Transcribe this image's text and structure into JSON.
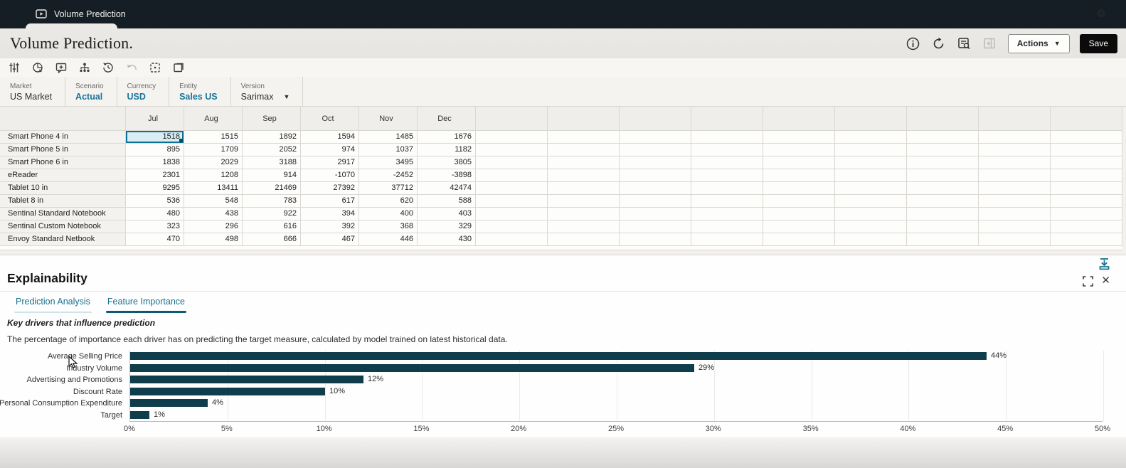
{
  "window": {
    "tab_title": "Volume Prediction"
  },
  "header": {
    "title": "Volume Prediction.",
    "actions_label": "Actions",
    "save_label": "Save",
    "icons": [
      "info-icon",
      "refresh-icon",
      "job-console-icon",
      "open-panel-icon"
    ]
  },
  "toolbar": {
    "icons": [
      "adjust-icon",
      "analyze-icon",
      "add-comment-icon",
      "hierarchy-icon",
      "history-icon",
      "undo-icon",
      "grid-options-icon",
      "new-window-icon"
    ],
    "undo_disabled": true
  },
  "pov": {
    "items": [
      {
        "label": "Market",
        "value": "US Market",
        "accent": false,
        "caret": false
      },
      {
        "label": "Scenario",
        "value": "Actual",
        "accent": true,
        "caret": false
      },
      {
        "label": "Currency",
        "value": "USD",
        "accent": true,
        "caret": false
      },
      {
        "label": "Entity",
        "value": "Sales US",
        "accent": true,
        "caret": false
      },
      {
        "label": "Version",
        "value": "Sarimax",
        "accent": false,
        "caret": true
      }
    ],
    "gear_icon": "gear-icon"
  },
  "grid": {
    "months": [
      "Jul",
      "Aug",
      "Sep",
      "Oct",
      "Nov",
      "Dec"
    ],
    "empty_columns": 9,
    "selected": {
      "row": 0,
      "col": 0
    },
    "rows": [
      {
        "label": "Smart Phone 4 in",
        "values": [
          "1518",
          "1515",
          "1892",
          "1594",
          "1485",
          "1676"
        ]
      },
      {
        "label": "Smart Phone 5 in",
        "values": [
          "895",
          "1709",
          "2052",
          "974",
          "1037",
          "1182"
        ]
      },
      {
        "label": "Smart Phone 6 in",
        "values": [
          "1838",
          "2029",
          "3188",
          "2917",
          "3495",
          "3805"
        ]
      },
      {
        "label": "eReader",
        "values": [
          "2301",
          "1208",
          "914",
          "-1070",
          "-2452",
          "-3898"
        ]
      },
      {
        "label": "Tablet 10 in",
        "values": [
          "9295",
          "13411",
          "21469",
          "27392",
          "37712",
          "42474"
        ]
      },
      {
        "label": "Tablet 8 in",
        "values": [
          "536",
          "548",
          "783",
          "617",
          "620",
          "588"
        ]
      },
      {
        "label": "Sentinal Standard Notebook",
        "values": [
          "480",
          "438",
          "922",
          "394",
          "400",
          "403"
        ]
      },
      {
        "label": "Sentinal Custom Notebook",
        "values": [
          "323",
          "296",
          "616",
          "392",
          "368",
          "329"
        ]
      },
      {
        "label": "Envoy Standard Netbook",
        "values": [
          "470",
          "498",
          "666",
          "467",
          "446",
          "430"
        ]
      }
    ]
  },
  "explainability": {
    "title": "Explainability",
    "tabs": [
      {
        "label": "Prediction Analysis",
        "active": false
      },
      {
        "label": "Feature Importance",
        "active": true
      }
    ],
    "heading": "Key drivers that influence prediction",
    "description": "The percentage of importance each driver has on predicting the target measure, calculated by model trained on latest historical data.",
    "icons": [
      "download-to-bottom-icon",
      "maximize-icon",
      "close-icon"
    ]
  },
  "chart_data": {
    "type": "bar",
    "orientation": "horizontal",
    "title": "Feature Importance",
    "categories": [
      "Average Selling Price",
      "Industry Volume",
      "Advertising and Promotions",
      "Discount Rate",
      "Personal Consumption Expenditure",
      "Target"
    ],
    "values": [
      44,
      29,
      12,
      10,
      4,
      1
    ],
    "value_labels": [
      "44%",
      "29%",
      "12%",
      "10%",
      "4%",
      "1%"
    ],
    "x_ticks": [
      "0%",
      "5%",
      "10%",
      "15%",
      "20%",
      "25%",
      "30%",
      "35%",
      "40%",
      "45%",
      "50%"
    ],
    "xlim": [
      0,
      50
    ],
    "xlabel": "",
    "ylabel": "",
    "grid": true,
    "legend": false,
    "bar_color": "#0f3d4c"
  },
  "colors": {
    "accent_teal": "#19759b",
    "tab_underline": "#0d5a74",
    "bar_fill": "#0f3d4c",
    "selected_cell_border": "#0d7296",
    "selected_cell_fill": "#d9edf5",
    "topbar_bg": "#141e24"
  }
}
